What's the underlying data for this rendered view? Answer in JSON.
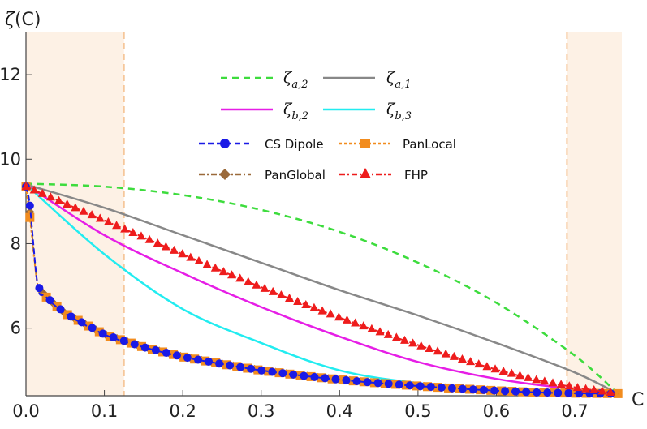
{
  "chart_data": {
    "type": "line",
    "title": "",
    "xlabel": "C",
    "ylabel_symbol": "ζ",
    "ylabel_arg": "(C)",
    "xlim": [
      0.0,
      0.76
    ],
    "ylim": [
      4.4,
      13.0
    ],
    "xticks": [
      "0.0",
      "0.1",
      "0.2",
      "0.3",
      "0.4",
      "0.5",
      "0.6",
      "0.7"
    ],
    "yticks": [
      "6",
      "8",
      "10",
      "12"
    ],
    "shaded_regions": [
      [
        0.0,
        0.125
      ],
      [
        0.69,
        0.76
      ]
    ],
    "curves": [
      {
        "id": "zeta_a2",
        "symbol": "ζ",
        "sub": "a,2",
        "color": "#3ddc3d",
        "dash": "8,6",
        "x": [
          0.0,
          0.1,
          0.2,
          0.3,
          0.4,
          0.5,
          0.6,
          0.7,
          0.755
        ],
        "y": [
          9.42,
          9.35,
          9.15,
          8.8,
          8.28,
          7.55,
          6.6,
          5.35,
          4.45
        ]
      },
      {
        "id": "zeta_a1",
        "symbol": "ζ",
        "sub": "a,1",
        "color": "#888888",
        "dash": "",
        "x": [
          0.0,
          0.1,
          0.2,
          0.3,
          0.4,
          0.5,
          0.6,
          0.7,
          0.755
        ],
        "y": [
          9.4,
          8.85,
          8.2,
          7.55,
          6.9,
          6.3,
          5.65,
          4.95,
          4.45
        ]
      },
      {
        "id": "zeta_b2",
        "symbol": "ζ",
        "sub": "b,2",
        "color": "#e61ee6",
        "dash": "",
        "x": [
          0.0,
          0.1,
          0.2,
          0.3,
          0.4,
          0.5,
          0.6,
          0.7,
          0.755
        ],
        "y": [
          9.4,
          8.2,
          7.3,
          6.5,
          5.8,
          5.2,
          4.8,
          4.55,
          4.45
        ]
      },
      {
        "id": "zeta_b3",
        "symbol": "ζ",
        "sub": "b,3",
        "color": "#22ecf0",
        "dash": "",
        "x": [
          0.0,
          0.1,
          0.2,
          0.3,
          0.4,
          0.5,
          0.6,
          0.7,
          0.755
        ],
        "y": [
          9.4,
          7.75,
          6.45,
          5.65,
          5.0,
          4.7,
          4.55,
          4.48,
          4.45
        ]
      }
    ],
    "series": [
      {
        "id": "cs_dipole",
        "name": "CS Dipole",
        "color": "#1a1ae6",
        "marker": "circle",
        "dash": "7,4",
        "x": [
          0.0,
          0.005,
          0.015,
          0.025,
          0.05,
          0.1,
          0.15,
          0.2,
          0.25,
          0.3,
          0.35,
          0.4,
          0.45,
          0.5,
          0.55,
          0.6,
          0.65,
          0.7,
          0.755
        ],
        "y": [
          9.35,
          8.9,
          7.0,
          6.75,
          6.35,
          5.85,
          5.55,
          5.32,
          5.15,
          5.0,
          4.88,
          4.78,
          4.7,
          4.63,
          4.57,
          4.52,
          4.48,
          4.46,
          4.45
        ]
      },
      {
        "id": "panlocal",
        "name": "PanLocal",
        "color": "#f28c1e",
        "marker": "square",
        "dash": "3,3",
        "x": [
          0.0,
          0.005,
          0.015,
          0.025,
          0.05,
          0.1,
          0.15,
          0.2,
          0.25,
          0.3,
          0.35,
          0.4,
          0.45,
          0.5,
          0.55,
          0.6,
          0.65,
          0.7,
          0.755
        ],
        "y": [
          9.35,
          8.62,
          7.0,
          6.75,
          6.35,
          5.85,
          5.55,
          5.32,
          5.15,
          5.0,
          4.88,
          4.78,
          4.7,
          4.63,
          4.57,
          4.52,
          4.48,
          4.46,
          4.45
        ]
      },
      {
        "id": "panglobal",
        "name": "PanGlobal",
        "color": "#9b6a3a",
        "marker": "diamond",
        "dash": "7,3,2,3",
        "x": [
          0.0,
          0.005,
          0.015,
          0.025,
          0.05,
          0.1,
          0.15,
          0.2,
          0.25,
          0.3,
          0.35,
          0.4,
          0.45,
          0.5,
          0.55,
          0.6,
          0.65,
          0.7,
          0.755
        ],
        "y": [
          9.35,
          8.75,
          7.0,
          6.75,
          6.35,
          5.85,
          5.55,
          5.32,
          5.15,
          5.0,
          4.88,
          4.78,
          4.7,
          4.63,
          4.57,
          4.52,
          4.48,
          4.46,
          4.45
        ]
      },
      {
        "id": "fhp",
        "name": "FHP",
        "color": "#ee1c1c",
        "marker": "triangle",
        "dash": "7,3,2,3",
        "x": [
          0.0,
          0.05,
          0.1,
          0.15,
          0.2,
          0.25,
          0.3,
          0.35,
          0.4,
          0.45,
          0.5,
          0.55,
          0.6,
          0.65,
          0.7,
          0.755
        ],
        "y": [
          9.35,
          8.95,
          8.55,
          8.15,
          7.75,
          7.35,
          6.97,
          6.6,
          6.25,
          5.92,
          5.6,
          5.3,
          5.02,
          4.78,
          4.6,
          4.45
        ]
      }
    ]
  }
}
